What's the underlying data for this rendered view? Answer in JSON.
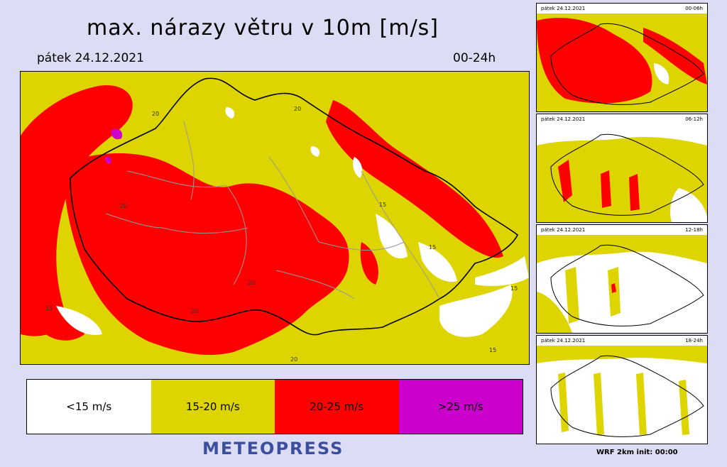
{
  "title": "max. nárazy větru v 10m [m/s]",
  "date": "pátek 24.12.2021",
  "range": "00-24h",
  "legend": [
    {
      "label": "<15 m/s",
      "color": "#ffffff"
    },
    {
      "label": "15-20 m/s",
      "color": "#ddd400"
    },
    {
      "label": "20-25 m/s",
      "color": "#ff0000"
    },
    {
      "label": ">25 m/s",
      "color": "#cc00cc"
    }
  ],
  "map_labels": [
    "20",
    "20",
    "20",
    "20",
    "20",
    "15",
    "15",
    "15",
    "15",
    "20",
    "15"
  ],
  "brand": "METEOPRESS",
  "thumbnails": [
    {
      "date": "pátek 24.12.2021",
      "range": "00-06h",
      "base": "#ddd400",
      "patch": "#ff0000"
    },
    {
      "date": "pátek 24.12.2021",
      "range": "06-12h",
      "base": "#ddd400",
      "patch": "#ff0000"
    },
    {
      "date": "pátek 24.12.2021",
      "range": "12-18h",
      "base": "#ffffff",
      "patch": "#ddd400"
    },
    {
      "date": "pátek 24.12.2021",
      "range": "18-24h",
      "base": "#ffffff",
      "patch": "#ddd400"
    }
  ],
  "footer": "WRF 2km init: 00:00"
}
